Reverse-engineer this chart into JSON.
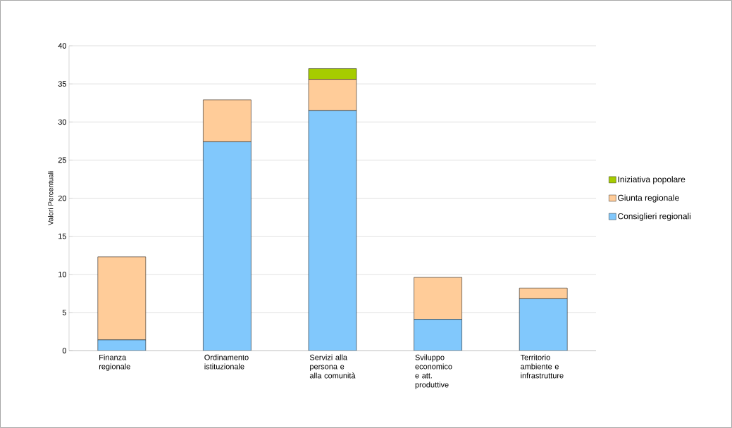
{
  "chart_data": {
    "type": "bar",
    "stacked": true,
    "ylabel": "Valori Percentuali",
    "categories": [
      "Finanza regionale",
      "Ordinamento istituzionale",
      "Servizi alla persona e alla comunità",
      "Sviluppo economico e att. produttive",
      "Territorio ambiente e infrastrutture"
    ],
    "series": [
      {
        "name": "Consiglieri regionali",
        "color": "#81c8fc",
        "values": [
          1.4,
          27.4,
          31.5,
          4.1,
          6.8
        ]
      },
      {
        "name": "Giunta regionale",
        "color": "#ffcc99",
        "values": [
          10.9,
          5.5,
          4.1,
          5.5,
          1.4
        ]
      },
      {
        "name": "Iniziativa popolare",
        "color": "#a6cc00",
        "values": [
          0,
          0,
          1.4,
          0,
          0
        ]
      }
    ],
    "ylim": [
      0,
      40
    ],
    "yticks": [
      0,
      5,
      10,
      15,
      20,
      25,
      30,
      35,
      40
    ],
    "grid": "y",
    "legend": "right"
  }
}
